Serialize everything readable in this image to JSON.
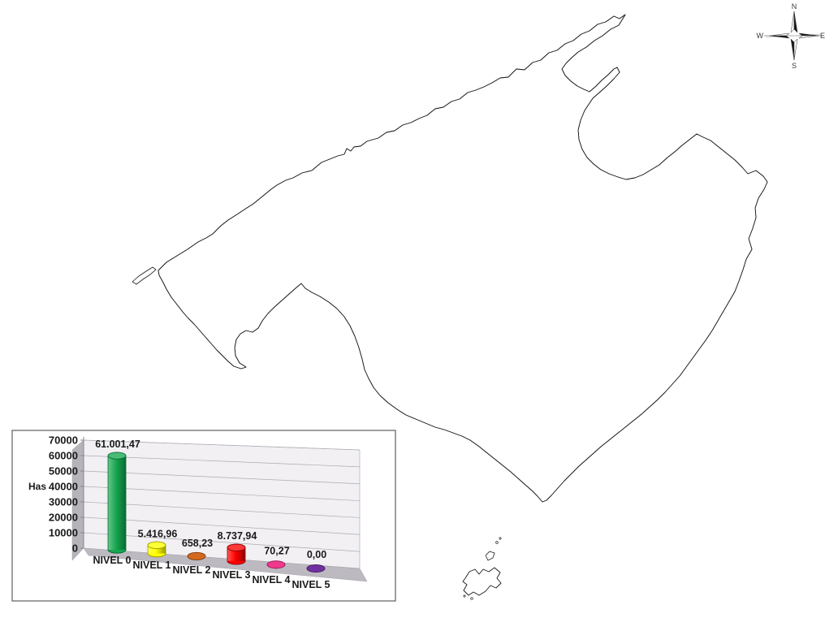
{
  "page": {
    "background": "#ffffff"
  },
  "compass": {
    "n": "N",
    "s": "S",
    "e": "E",
    "w": "W"
  },
  "map": {
    "name": "mallorca-risk-levels-map",
    "colors": {
      "sea": "#ffffff",
      "land": "#ffffff",
      "coast": "#1a1a1a",
      "boundary": "#141414",
      "road": "#8f8f8f",
      "urban": "#c9d2ec",
      "urban_edge": "#8c94b4",
      "green_patch": "#5cbe5c",
      "green_edge": "#2f7d33",
      "yellow_patch": "#ffee00",
      "yellow_edge": "#8a7d00",
      "orange_patch": "#dc7520",
      "orange_edge": "#7d3a0d",
      "red_patch": "#f40000",
      "red_edge": "#7d0000",
      "speckle": "#7d8273",
      "gray_blob": "#8a8f85"
    }
  },
  "chart_data": {
    "type": "bar",
    "style": "3d-cylinder",
    "title": "",
    "ylabel": "Has",
    "categories": [
      "NIVEL 0",
      "NIVEL 1",
      "NIVEL 2",
      "NIVEL 3",
      "NIVEL 4",
      "NIVEL 5"
    ],
    "values": [
      61001.47,
      5416.96,
      658.23,
      8737.94,
      70.27,
      0.0
    ],
    "value_labels": [
      "61.001,47",
      "5.416,96",
      "658,23",
      "8.737,94",
      "70,27",
      "0,00"
    ],
    "bar_colors": [
      "#17a650",
      "#ffff00",
      "#d2691e",
      "#ff0000",
      "#ee3a8c",
      "#7030a0"
    ],
    "bar_edge_colors": [
      "#0a6b33",
      "#9b9b00",
      "#7d3a0d",
      "#8e0000",
      "#9c1458",
      "#43185f"
    ],
    "ylim": [
      0,
      70000
    ],
    "yticks": [
      0,
      10000,
      20000,
      30000,
      40000,
      50000,
      60000,
      70000
    ],
    "grid": true,
    "legend": false,
    "wall_color": "#f2f0f3",
    "gridline_color": "#aeaab2",
    "floor_color": "#bdb9c1",
    "side_wall_color": "#b7b3bb",
    "frame_color": "#6a6a6a"
  }
}
